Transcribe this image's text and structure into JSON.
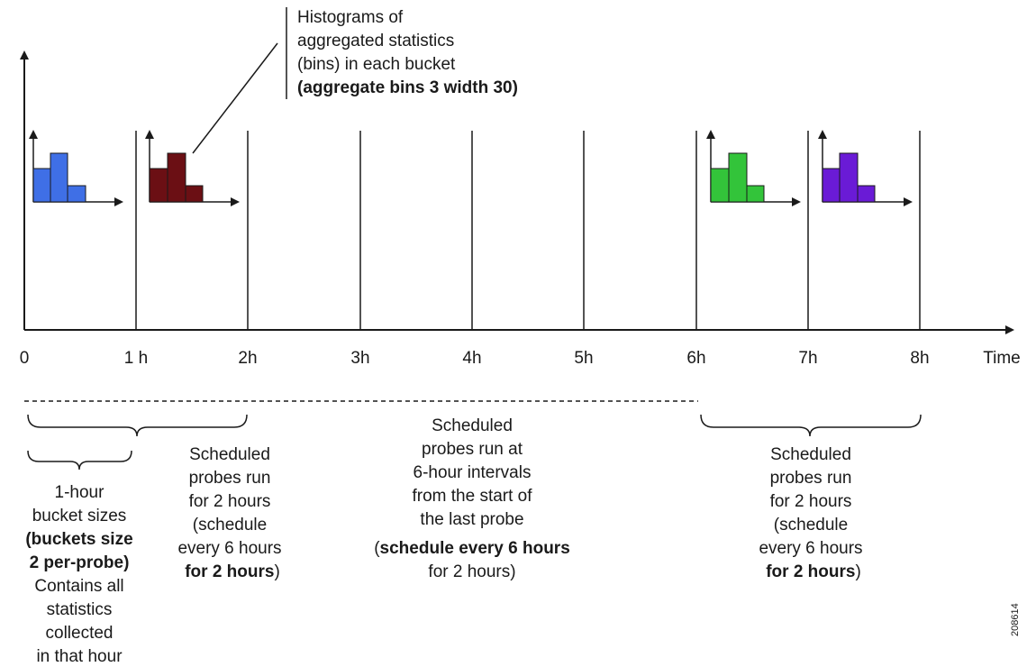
{
  "timeline": {
    "ticks": [
      "0",
      "1 h",
      "2h",
      "3h",
      "4h",
      "5h",
      "6h",
      "7h",
      "8h"
    ],
    "axis_label": "Time"
  },
  "histograms": [
    {
      "bucket": 0,
      "color": "#3f6fe6",
      "bins": 3
    },
    {
      "bucket": 1,
      "color": "#6b0f14",
      "bins": 3
    },
    {
      "bucket": 6,
      "color": "#33c43a",
      "bins": 3
    },
    {
      "bucket": 7,
      "color": "#6a1bd6",
      "bins": 3
    }
  ],
  "callout": {
    "lines": [
      "Histograms of",
      "aggregated statistics",
      "(bins) in each bucket"
    ],
    "bold_line": "(aggregate bins 3 width 30)"
  },
  "bucket_note": {
    "line1": "1-hour",
    "line2": "bucket sizes",
    "bold1": "(buckets size",
    "bold2": "2 per-probe)",
    "line5": "Contains all",
    "line6": "statistics",
    "line7": "collected",
    "line8": "in that hour"
  },
  "probe_note_left": {
    "line1": "Scheduled",
    "line2": "probes run",
    "line3": "for 2 hours",
    "line4": "(schedule",
    "line5": "every 6 hours",
    "bold": "for 2 hours",
    "close": ")"
  },
  "interval_note": {
    "line1": "Scheduled",
    "line2": "probes run at",
    "line3": "6-hour intervals",
    "line4": "from the start of",
    "line5": "the last probe",
    "open": "(",
    "bold": "schedule every 6 hours",
    "line7": "for 2 hours)"
  },
  "probe_note_right": {
    "line1": "Scheduled",
    "line2": "probes run",
    "line3": "for 2 hours",
    "line4": "(schedule",
    "line5": "every 6 hours",
    "bold": "for 2 hours",
    "close": ")"
  },
  "figure_id": "208614"
}
